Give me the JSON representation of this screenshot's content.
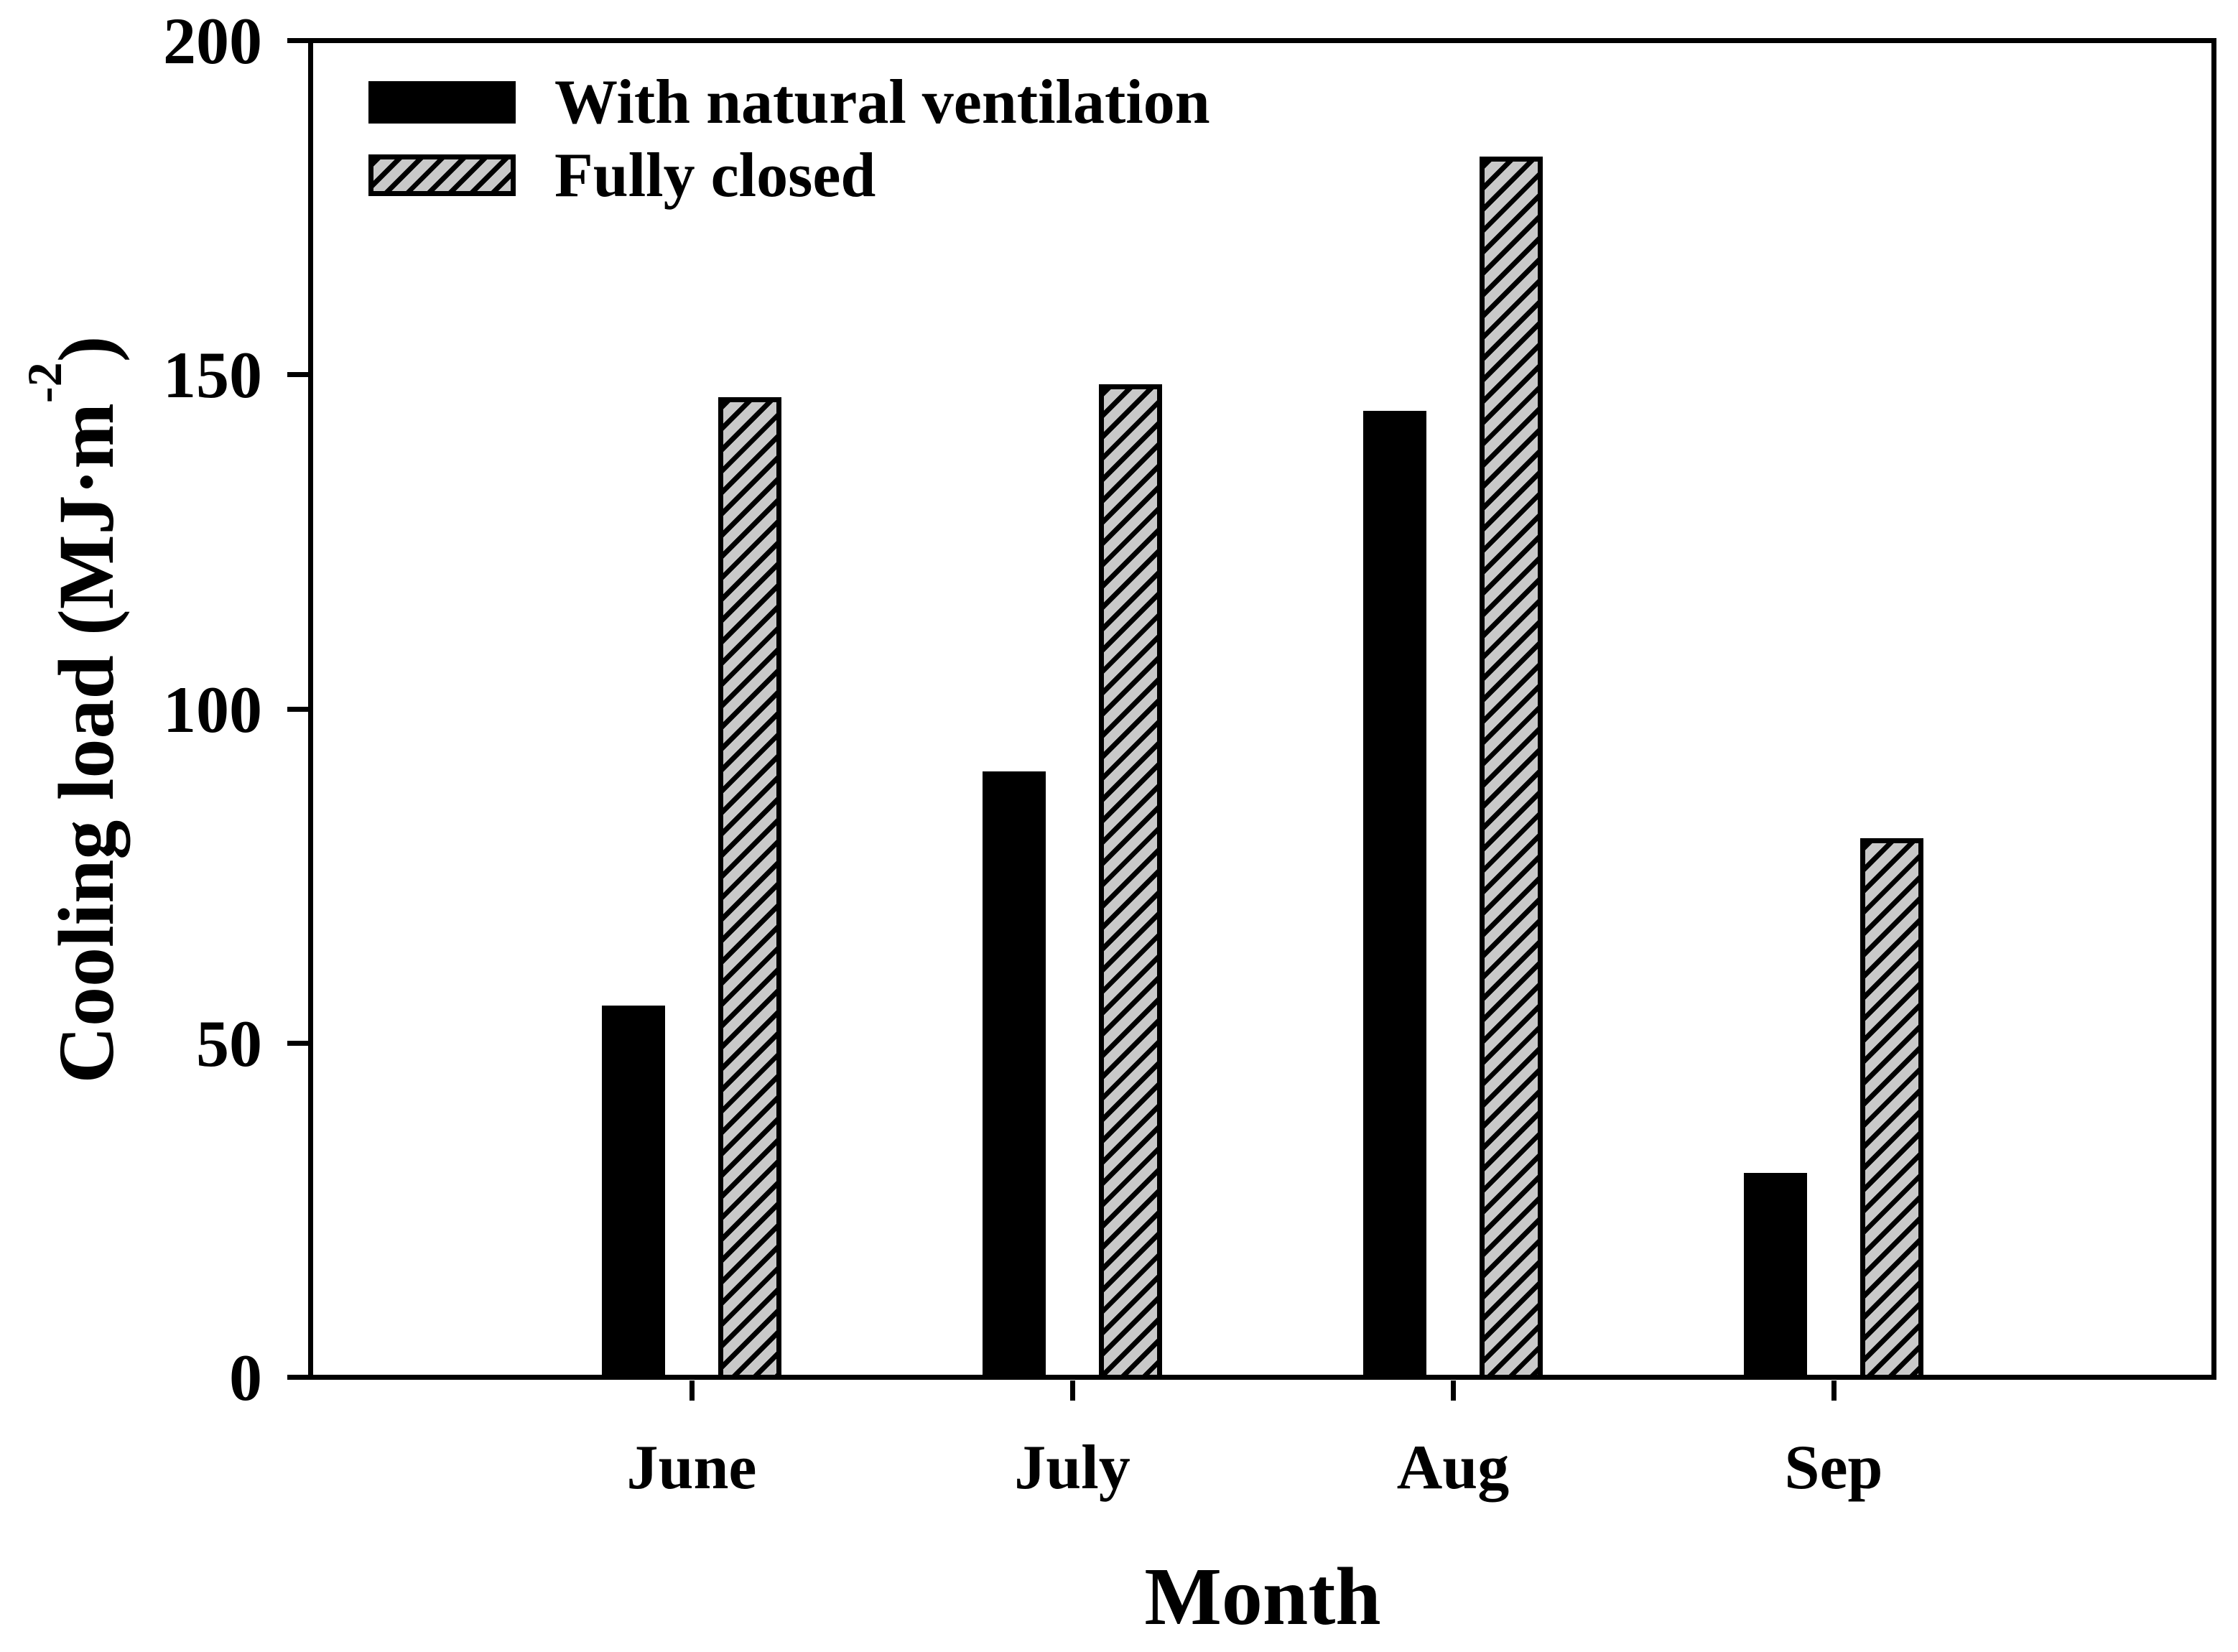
{
  "chart_data": {
    "type": "bar",
    "title": "",
    "categories": [
      "June",
      "July",
      "Aug",
      "Sep"
    ],
    "series": [
      {
        "name": "With natural ventilation",
        "style": "solid-black",
        "values": [
          56,
          91,
          145,
          31
        ]
      },
      {
        "name": "Fully closed",
        "style": "gray-diagonal-hatch",
        "values": [
          147,
          149,
          183,
          81
        ]
      }
    ],
    "xlabel": "Month",
    "ylabel": "Cooling load (MJ·m⁻²)",
    "ylim": [
      0,
      200
    ],
    "yticks": [
      0,
      50,
      100,
      150,
      200
    ],
    "grid": false,
    "legend_position": "top-left-inside"
  },
  "axes": {
    "xlabel": "Month",
    "ylabel_prefix": "Cooling load (MJ·m",
    "ylabel_sup": "-2",
    "ylabel_suffix": ")"
  },
  "legend": {
    "items": [
      {
        "label": "With natural ventilation",
        "swatch": "solid-black"
      },
      {
        "label": "Fully closed",
        "swatch": "gray-diagonal-hatch"
      }
    ]
  },
  "colors": {
    "bar_solid": "#000000",
    "hatch_fill": "#c9c9c9",
    "hatch_stripe": "#000000",
    "axis": "#000000",
    "text": "#000000",
    "background": "#ffffff"
  }
}
